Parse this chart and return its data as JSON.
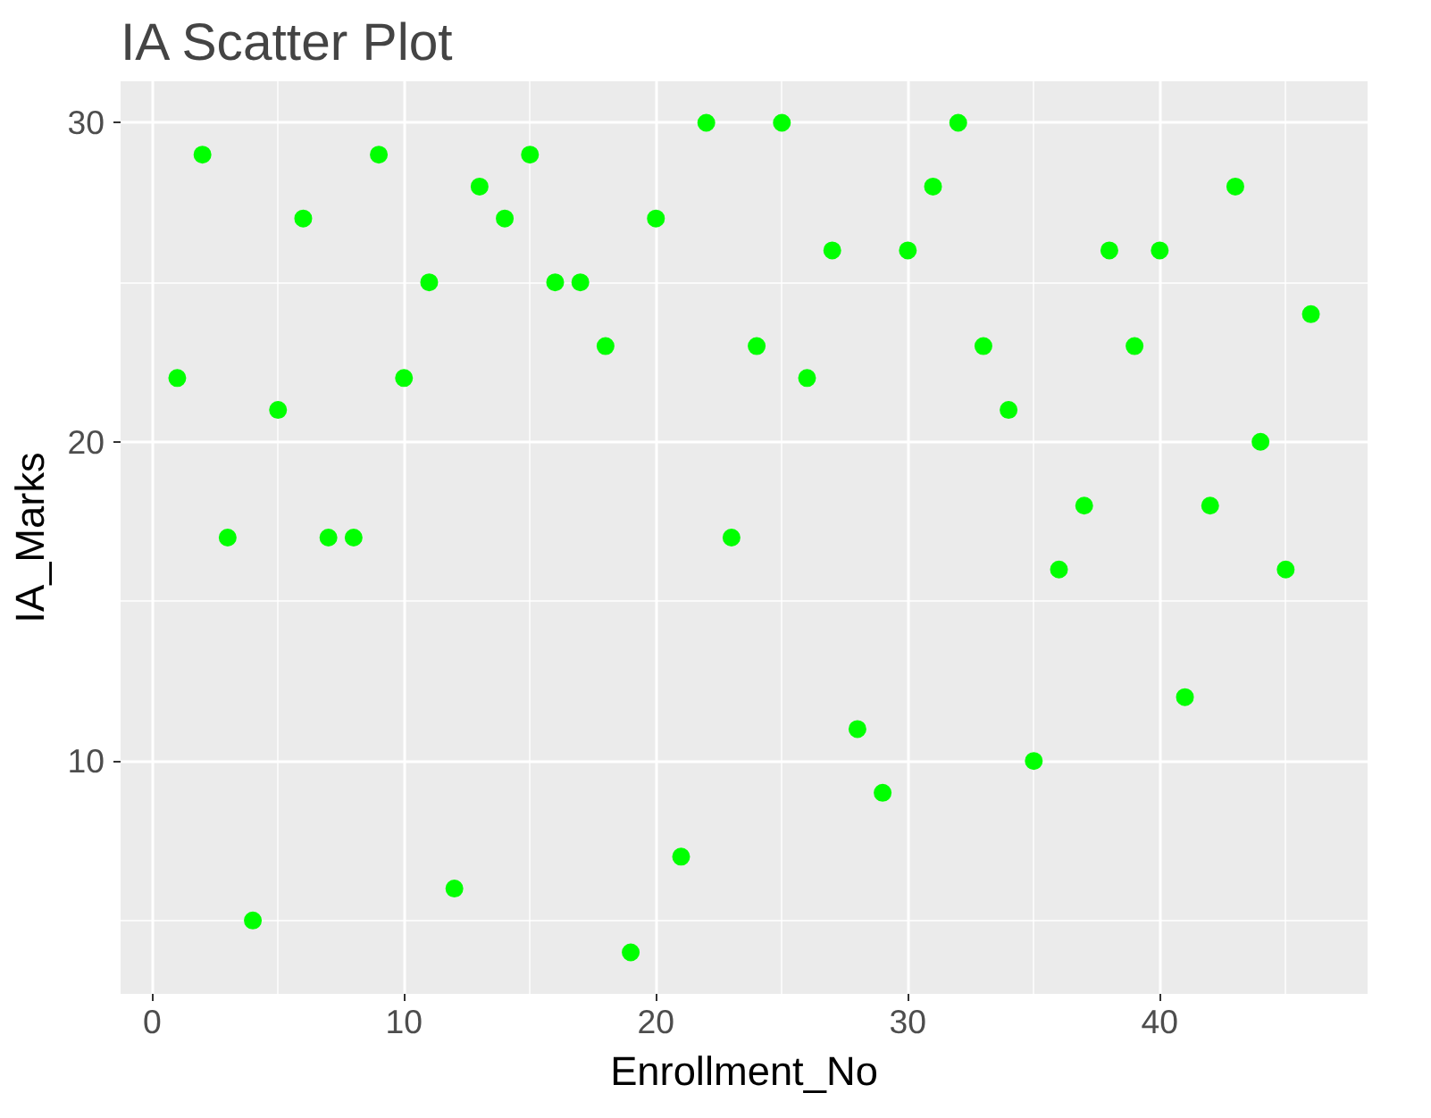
{
  "chart_data": {
    "type": "scatter",
    "title": "IA Scatter Plot",
    "xlabel": "Enrollment_No",
    "ylabel": "IA_Marks",
    "x": [
      1,
      2,
      3,
      4,
      5,
      6,
      7,
      8,
      9,
      10,
      11,
      12,
      13,
      14,
      15,
      16,
      17,
      18,
      19,
      20,
      21,
      22,
      23,
      24,
      25,
      26,
      27,
      28,
      29,
      30,
      31,
      32,
      33,
      34,
      35,
      36,
      37,
      38,
      39,
      40,
      41,
      42,
      43,
      44,
      45,
      46
    ],
    "series": [
      {
        "color": "#00ff00",
        "values": [
          22,
          29,
          17,
          5,
          21,
          27,
          17,
          17,
          29,
          22,
          25,
          6,
          28,
          27,
          29,
          25,
          25,
          23,
          4,
          27,
          7,
          30,
          17,
          23,
          30,
          22,
          26,
          11,
          9,
          26,
          28,
          30,
          23,
          21,
          10,
          16,
          18,
          26,
          23,
          26,
          12,
          18,
          28,
          20,
          16,
          24
        ]
      }
    ],
    "xlim": [
      -1.25,
      48.25
    ],
    "ylim": [
      2.7,
      31.3
    ],
    "xticks": [
      0,
      10,
      20,
      30,
      40
    ],
    "yticks": [
      10,
      20,
      30
    ],
    "grid": true,
    "marker": "circle"
  }
}
